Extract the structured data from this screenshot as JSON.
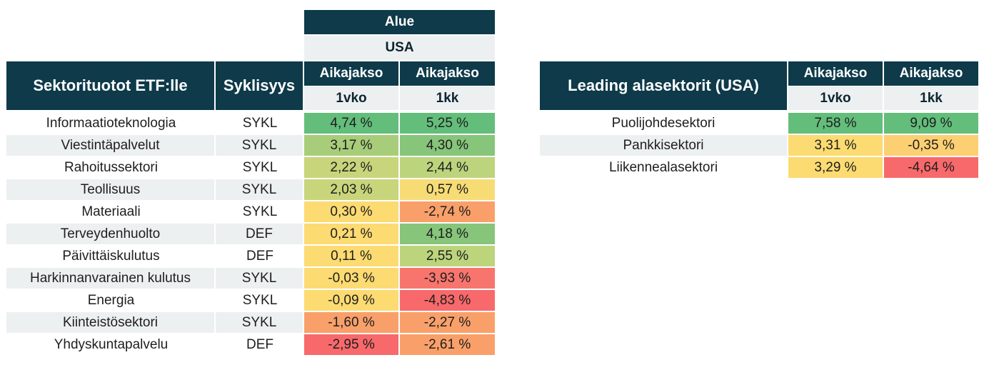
{
  "colors": {
    "header_bg": "#0e3a4a",
    "sub_bg": "#edf0f1",
    "stripe_bg": "#edf0f1"
  },
  "left_table": {
    "title": "Sektorituotot ETF:lle",
    "cyclicality_header": "Syklisyys",
    "region_header": "Alue",
    "region": "USA",
    "period_headers": [
      "Aikajakso",
      "Aikajakso"
    ],
    "periods": [
      "1vko",
      "1kk"
    ],
    "rows": [
      {
        "sector": "Informaatioteknologia",
        "cycle": "SYKL",
        "w1": "4,74 %",
        "m1": "5,25 %",
        "w1_color": "#63be7b",
        "m1_color": "#63be7b"
      },
      {
        "sector": "Viestintäpalvelut",
        "cycle": "SYKL",
        "w1": "3,17 %",
        "m1": "4,30 %",
        "w1_color": "#a8cd7a",
        "m1_color": "#86c57a"
      },
      {
        "sector": "Rahoitussektori",
        "cycle": "SYKL",
        "w1": "2,22 %",
        "m1": "2,44 %",
        "w1_color": "#c8d57b",
        "m1_color": "#bcd47c"
      },
      {
        "sector": "Teollisuus",
        "cycle": "SYKL",
        "w1": "2,03 %",
        "m1": "0,57 %",
        "w1_color": "#c8d57b",
        "m1_color": "#f7dc76"
      },
      {
        "sector": "Materiaali",
        "cycle": "SYKL",
        "w1": "0,30 %",
        "m1": "-2,74 %",
        "w1_color": "#fcdb72",
        "m1_color": "#f9a06a"
      },
      {
        "sector": "Terveydenhuolto",
        "cycle": "DEF",
        "w1": "0,21 %",
        "m1": "4,18 %",
        "w1_color": "#fcdb72",
        "m1_color": "#86c57a"
      },
      {
        "sector": "Päivittäiskulutus",
        "cycle": "DEF",
        "w1": "0,11 %",
        "m1": "2,55 %",
        "w1_color": "#fcdb72",
        "m1_color": "#bcd47c"
      },
      {
        "sector": "Harkinnanvarainen kulutus",
        "cycle": "SYKL",
        "w1": "-0,03 %",
        "m1": "-3,93 %",
        "w1_color": "#fcdb72",
        "m1_color": "#f8756d"
      },
      {
        "sector": "Energia",
        "cycle": "SYKL",
        "w1": "-0,09 %",
        "m1": "-4,83 %",
        "w1_color": "#fcdb72",
        "m1_color": "#f8696b"
      },
      {
        "sector": "Kiinteistösektori",
        "cycle": "SYKL",
        "w1": "-1,60 %",
        "m1": "-2,27 %",
        "w1_color": "#f9a06a",
        "m1_color": "#f9a06a"
      },
      {
        "sector": "Yhdyskuntapalvelu",
        "cycle": "DEF",
        "w1": "-2,95 %",
        "m1": "-2,61 %",
        "w1_color": "#f8696b",
        "m1_color": "#f9a06a"
      }
    ]
  },
  "right_table": {
    "title": "Leading alasektorit (USA)",
    "period_headers": [
      "Aikajakso",
      "Aikajakso"
    ],
    "periods": [
      "1vko",
      "1kk"
    ],
    "rows": [
      {
        "sector": "Puolijohdesektori",
        "w1": "7,58 %",
        "m1": "9,09 %",
        "w1_color": "#63be7b",
        "m1_color": "#63be7b"
      },
      {
        "sector": "Pankkisektori",
        "w1": "3,31 %",
        "m1": "-0,35 %",
        "w1_color": "#fcdb72",
        "m1_color": "#fcd072"
      },
      {
        "sector": "Liikennealasektori",
        "w1": "3,29 %",
        "m1": "-4,64 %",
        "w1_color": "#fcdb72",
        "m1_color": "#f8696b"
      }
    ]
  }
}
